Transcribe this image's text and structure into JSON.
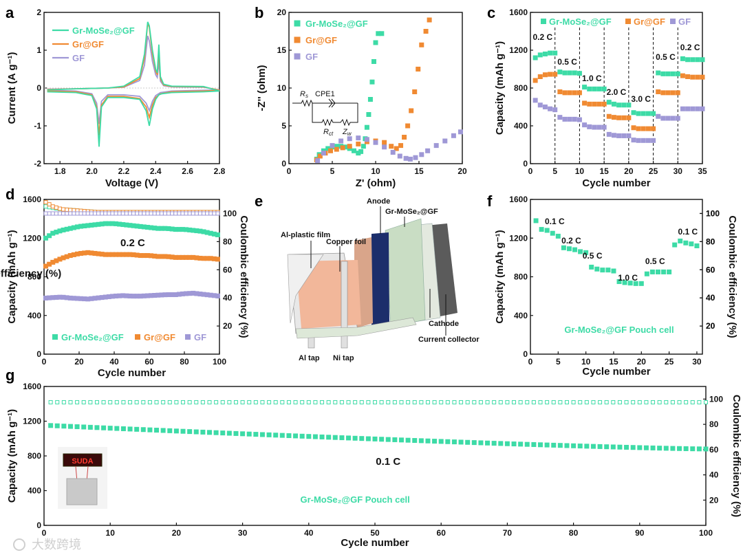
{
  "colors": {
    "grmose2": "#3DDBA6",
    "grgf": "#F08A32",
    "gf": "#9F98D6",
    "anode": "#1C2E6B",
    "copper": "#F2B79A",
    "cathode": "#5B5B5B",
    "film": "#D9D9D9",
    "separator": "#C9DDC4"
  },
  "panel_letters": [
    "a",
    "b",
    "c",
    "d",
    "e",
    "f",
    "g"
  ],
  "legend_labels": {
    "grmose2": "Gr-MoSe₂@GF",
    "grgf": "Gr@GF",
    "gf": "GF"
  },
  "chart_data": [
    {
      "id": "a",
      "type": "line",
      "xlabel": "Voltage (V)",
      "ylabel": "Current (A g⁻¹)",
      "xlim": [
        1.7,
        2.8
      ],
      "ylim": [
        -2,
        2
      ],
      "xticks": [
        "1.8",
        "2.0",
        "2.2",
        "2.4",
        "2.6",
        "2.8"
      ],
      "yticks": [
        "-2",
        "-1",
        "0",
        "1",
        "2"
      ],
      "series": [
        {
          "name": "Gr-MoSe₂@GF",
          "color": "grmose2",
          "x": [
            1.72,
            1.9,
            2.0,
            2.03,
            2.045,
            2.06,
            2.1,
            2.2,
            2.3,
            2.34,
            2.36,
            2.38,
            2.4,
            2.42,
            2.44,
            2.5,
            2.7,
            2.8,
            2.7,
            2.5,
            2.45,
            2.43,
            2.42,
            2.41,
            2.4,
            2.38,
            2.36,
            2.35,
            2.33,
            2.3,
            2.2,
            2.1,
            1.9,
            1.72
          ],
          "y": [
            -0.1,
            -0.12,
            -0.2,
            -0.55,
            -1.55,
            -0.5,
            -0.25,
            -0.25,
            -0.3,
            -0.6,
            -1.0,
            -0.55,
            -0.3,
            -0.18,
            -0.15,
            -0.12,
            -0.1,
            -0.08,
            0.04,
            0.05,
            0.1,
            0.3,
            1.15,
            0.4,
            0.5,
            1.0,
            1.65,
            1.75,
            0.9,
            0.3,
            0.05,
            0.0,
            -0.02,
            -0.05
          ]
        },
        {
          "name": "Gr@GF",
          "color": "grgf",
          "x": [
            1.72,
            1.9,
            2.0,
            2.03,
            2.045,
            2.06,
            2.1,
            2.2,
            2.3,
            2.34,
            2.36,
            2.38,
            2.4,
            2.43,
            2.5,
            2.7,
            2.8,
            2.7,
            2.5,
            2.45,
            2.43,
            2.42,
            2.41,
            2.4,
            2.38,
            2.36,
            2.35,
            2.33,
            2.3,
            2.2,
            2.1,
            1.9,
            1.72
          ],
          "y": [
            -0.08,
            -0.1,
            -0.18,
            -0.5,
            -1.25,
            -0.45,
            -0.22,
            -0.22,
            -0.28,
            -0.5,
            -0.78,
            -0.45,
            -0.25,
            -0.15,
            -0.1,
            -0.08,
            -0.06,
            0.03,
            0.04,
            0.08,
            0.25,
            0.95,
            0.35,
            0.45,
            0.9,
            1.6,
            1.72,
            0.8,
            0.25,
            0.03,
            0.0,
            -0.02,
            -0.04
          ]
        },
        {
          "name": "GF",
          "color": "gf",
          "x": [
            1.72,
            1.9,
            2.0,
            2.03,
            2.045,
            2.06,
            2.1,
            2.2,
            2.3,
            2.34,
            2.36,
            2.38,
            2.4,
            2.43,
            2.5,
            2.7,
            2.8,
            2.7,
            2.5,
            2.45,
            2.43,
            2.42,
            2.41,
            2.4,
            2.38,
            2.36,
            2.35,
            2.33,
            2.3,
            2.2,
            2.1,
            1.9,
            1.72
          ],
          "y": [
            -0.06,
            -0.08,
            -0.15,
            -0.4,
            -0.95,
            -0.35,
            -0.18,
            -0.18,
            -0.22,
            -0.4,
            -0.6,
            -0.35,
            -0.2,
            -0.12,
            -0.08,
            -0.06,
            -0.05,
            0.02,
            0.03,
            0.06,
            0.18,
            0.7,
            0.28,
            0.35,
            0.7,
            1.25,
            1.38,
            0.6,
            0.2,
            0.02,
            0.0,
            -0.02,
            -0.03
          ]
        }
      ],
      "legend": "top-left"
    },
    {
      "id": "b",
      "type": "scatter",
      "xlabel": "Z' (ohm)",
      "ylabel": "-Z'' (ohm)",
      "xlim": [
        0,
        20
      ],
      "ylim": [
        0,
        20
      ],
      "xticks": [
        "0",
        "5",
        "10",
        "15",
        "20"
      ],
      "yticks": [
        "0",
        "5",
        "10",
        "15",
        "20"
      ],
      "series": [
        {
          "name": "Gr-MoSe₂@GF",
          "color": "grmose2",
          "x": [
            3.2,
            3.5,
            4.0,
            4.5,
            5.0,
            5.5,
            6.0,
            6.5,
            7.0,
            7.5,
            8.0,
            8.3,
            8.6,
            8.8,
            9.0,
            9.2,
            9.4,
            9.6,
            9.8,
            10.0,
            10.3,
            10.7
          ],
          "y": [
            0.6,
            1.2,
            1.7,
            2.0,
            2.2,
            2.3,
            2.3,
            2.2,
            2.0,
            1.7,
            1.4,
            1.6,
            2.3,
            3.3,
            4.8,
            6.5,
            8.5,
            10.8,
            13.5,
            16.0,
            17.2,
            17.2
          ]
        },
        {
          "name": "Gr@GF",
          "color": "grgf",
          "x": [
            3.2,
            3.6,
            4.2,
            4.8,
            5.5,
            6.2,
            7.0,
            8.0,
            9.0,
            10.0,
            11.0,
            11.8,
            12.4,
            12.9,
            13.3,
            13.7,
            14.1,
            14.5,
            14.9,
            15.3,
            15.8,
            16.2
          ],
          "y": [
            0.5,
            1.0,
            1.4,
            1.7,
            1.9,
            2.1,
            2.3,
            2.6,
            2.9,
            3.0,
            2.8,
            2.3,
            2.0,
            2.4,
            3.5,
            5.0,
            7.0,
            9.5,
            12.5,
            15.7,
            17.5,
            19.0
          ]
        },
        {
          "name": "GF",
          "color": "gf",
          "x": [
            3.3,
            4.0,
            5.0,
            6.0,
            7.0,
            8.0,
            9.0,
            10.0,
            11.0,
            12.0,
            12.8,
            13.5,
            14.0,
            14.6,
            15.3,
            16.0,
            17.0,
            18.0,
            19.0,
            19.8
          ],
          "y": [
            0.4,
            1.4,
            2.4,
            3.0,
            3.3,
            3.4,
            3.2,
            2.8,
            2.2,
            1.5,
            1.0,
            0.7,
            0.6,
            0.8,
            1.2,
            1.7,
            2.4,
            3.0,
            3.7,
            4.2
          ]
        }
      ],
      "inset": {
        "r_s": "R",
        "r_s_sub": "s",
        "cpe": "CPE1",
        "r_ct": "R",
        "r_ct_sub": "ct",
        "z_w": "Z",
        "z_w_sub": "w"
      },
      "legend": "top-left"
    },
    {
      "id": "c",
      "type": "scatter",
      "xlabel": "Cycle number",
      "ylabel": "Capacity (mAh g⁻¹)",
      "xlim": [
        0,
        35
      ],
      "ylim": [
        0,
        1600
      ],
      "xticks": [
        "0",
        "5",
        "10",
        "15",
        "20",
        "25",
        "30",
        "35"
      ],
      "yticks": [
        "0",
        "400",
        "800",
        "1200",
        "1600"
      ],
      "rate_labels": [
        "0.2 C",
        "0.5 C",
        "1.0 C",
        "2.0 C",
        "3.0 C",
        "0.5 C",
        "0.2 C"
      ],
      "dividers": [
        5,
        10,
        15,
        20,
        25,
        30
      ],
      "series": [
        {
          "name": "Gr-MoSe₂@GF",
          "color": "grmose2",
          "values": [
            1120,
            1150,
            1160,
            1170,
            1170,
            970,
            960,
            960,
            960,
            955,
            810,
            790,
            790,
            790,
            790,
            650,
            630,
            620,
            620,
            620,
            540,
            530,
            530,
            530,
            530,
            960,
            950,
            950,
            950,
            950,
            1110,
            1100,
            1100,
            1100,
            1100
          ]
        },
        {
          "name": "Gr@GF",
          "color": "grgf",
          "values": [
            880,
            920,
            940,
            945,
            945,
            760,
            750,
            750,
            750,
            750,
            640,
            630,
            630,
            630,
            630,
            500,
            490,
            485,
            485,
            485,
            380,
            370,
            370,
            370,
            370,
            760,
            750,
            750,
            750,
            750,
            930,
            920,
            915,
            915,
            915
          ]
        },
        {
          "name": "GF",
          "color": "gf",
          "values": [
            670,
            620,
            600,
            580,
            570,
            490,
            470,
            470,
            470,
            465,
            410,
            390,
            385,
            385,
            385,
            310,
            300,
            295,
            295,
            295,
            250,
            245,
            245,
            245,
            245,
            500,
            480,
            480,
            480,
            480,
            580,
            580,
            580,
            580,
            580
          ]
        }
      ],
      "legend": "top"
    },
    {
      "id": "d",
      "type": "scatter",
      "xlabel": "Cycle number",
      "ylabel": "Capacity (mAh g⁻¹)",
      "y2label": "Coulombic efficiency (%)",
      "xlim": [
        0,
        100
      ],
      "ylim": [
        0,
        1600
      ],
      "y2lim": [
        0,
        110
      ],
      "xticks": [
        "0",
        "20",
        "40",
        "60",
        "80",
        "100"
      ],
      "yticks": [
        "0",
        "400",
        "800",
        "1200",
        "1600"
      ],
      "y2ticks": [
        "20",
        "40",
        "60",
        "80",
        "100"
      ],
      "annotation": "0.2 C",
      "capacity": {
        "grmose2": {
          "x": [
            1,
            5,
            10,
            15,
            20,
            25,
            30,
            35,
            40,
            45,
            50,
            55,
            60,
            65,
            70,
            75,
            80,
            85,
            90,
            95,
            100
          ],
          "y": [
            1200,
            1250,
            1280,
            1300,
            1320,
            1330,
            1340,
            1350,
            1350,
            1340,
            1330,
            1320,
            1310,
            1300,
            1300,
            1290,
            1290,
            1280,
            1270,
            1250,
            1230
          ]
        },
        "grgf": {
          "x": [
            1,
            5,
            10,
            15,
            20,
            25,
            30,
            35,
            40,
            45,
            50,
            55,
            60,
            65,
            70,
            75,
            80,
            85,
            90,
            95,
            100
          ],
          "y": [
            910,
            950,
            990,
            1020,
            1040,
            1050,
            1040,
            1030,
            1030,
            1030,
            1030,
            1020,
            1020,
            1010,
            1010,
            1000,
            1000,
            1000,
            990,
            990,
            980
          ]
        },
        "gf": {
          "x": [
            1,
            5,
            10,
            15,
            20,
            25,
            30,
            35,
            40,
            45,
            50,
            55,
            60,
            65,
            70,
            75,
            80,
            85,
            90,
            95,
            100
          ],
          "y": [
            580,
            585,
            590,
            580,
            575,
            570,
            580,
            590,
            600,
            605,
            600,
            600,
            605,
            610,
            615,
            615,
            625,
            630,
            620,
            610,
            600
          ]
        }
      },
      "ce": {
        "grmose2": {
          "x": [
            1,
            5,
            10,
            20,
            30,
            40,
            50,
            60,
            70,
            80,
            90,
            100
          ],
          "y": [
            105,
            104,
            103,
            102,
            101,
            101,
            101,
            101,
            101,
            101,
            101,
            101
          ]
        },
        "grgf": {
          "x": [
            1,
            5,
            10,
            20,
            30,
            40,
            50,
            60,
            70,
            80,
            90,
            100
          ],
          "y": [
            108,
            105,
            103,
            102,
            101,
            101,
            101,
            101,
            101,
            101,
            101,
            101
          ]
        },
        "gf": {
          "x": [
            1,
            5,
            10,
            20,
            30,
            40,
            50,
            60,
            70,
            80,
            90,
            100
          ],
          "y": [
            100,
            100,
            100,
            100,
            100,
            100,
            100,
            100,
            100,
            100,
            100,
            100
          ]
        }
      },
      "legend": "bottom"
    },
    {
      "id": "f",
      "type": "scatter",
      "xlabel": "Cycle number",
      "ylabel": "Capacity (mAh g⁻¹)",
      "y2label": "Coulombic efficiency (%)",
      "xlim": [
        0,
        31
      ],
      "ylim": [
        0,
        1600
      ],
      "xticks": [
        "0",
        "5",
        "10",
        "15",
        "20",
        "25",
        "30"
      ],
      "yticks": [
        "0",
        "400",
        "800",
        "1200",
        "1600"
      ],
      "y2ticks": [
        "20",
        "40",
        "60",
        "80",
        "100"
      ],
      "rate_labels": [
        "0.1 C",
        "0.2 C",
        "0.5 C",
        "1.0 C",
        "0.5 C",
        "0.1 C"
      ],
      "annotation": "Gr-MoSe₂@GF  Pouch cell",
      "values": [
        1380,
        1290,
        1280,
        1250,
        1220,
        1100,
        1090,
        1080,
        1060,
        1050,
        900,
        880,
        870,
        870,
        860,
        750,
        740,
        735,
        730,
        730,
        830,
        850,
        850,
        850,
        850,
        1130,
        1170,
        1150,
        1140,
        1120
      ]
    },
    {
      "id": "g",
      "type": "scatter",
      "xlabel": "Cycle number",
      "ylabel": "Capacity (mAh g⁻¹)",
      "y2label": "Coulombic efficiency (%)",
      "xlim": [
        0,
        100
      ],
      "ylim": [
        0,
        1600
      ],
      "y2lim": [
        0,
        110
      ],
      "xticks": [
        "0",
        "10",
        "20",
        "30",
        "40",
        "50",
        "60",
        "70",
        "80",
        "90",
        "100"
      ],
      "yticks": [
        "0",
        "400",
        "800",
        "1200",
        "1600"
      ],
      "y2ticks": [
        "20",
        "40",
        "60",
        "80",
        "100"
      ],
      "annotation_rate": "0.1 C",
      "annotation": "Gr-MoSe₂@GF  Pouch cell",
      "photo_text": "SUDA",
      "capacity_start": 1150,
      "capacity_end": 880,
      "ce_value": 97.5
    }
  ],
  "panel_e": {
    "labels": [
      "Anode",
      "Gr-MoSe₂@GF",
      "Al-plastic film",
      "Copper foil",
      "Cathode",
      "Current collector",
      "Al tap",
      "Ni tap"
    ]
  },
  "watermark": "大数跨境"
}
